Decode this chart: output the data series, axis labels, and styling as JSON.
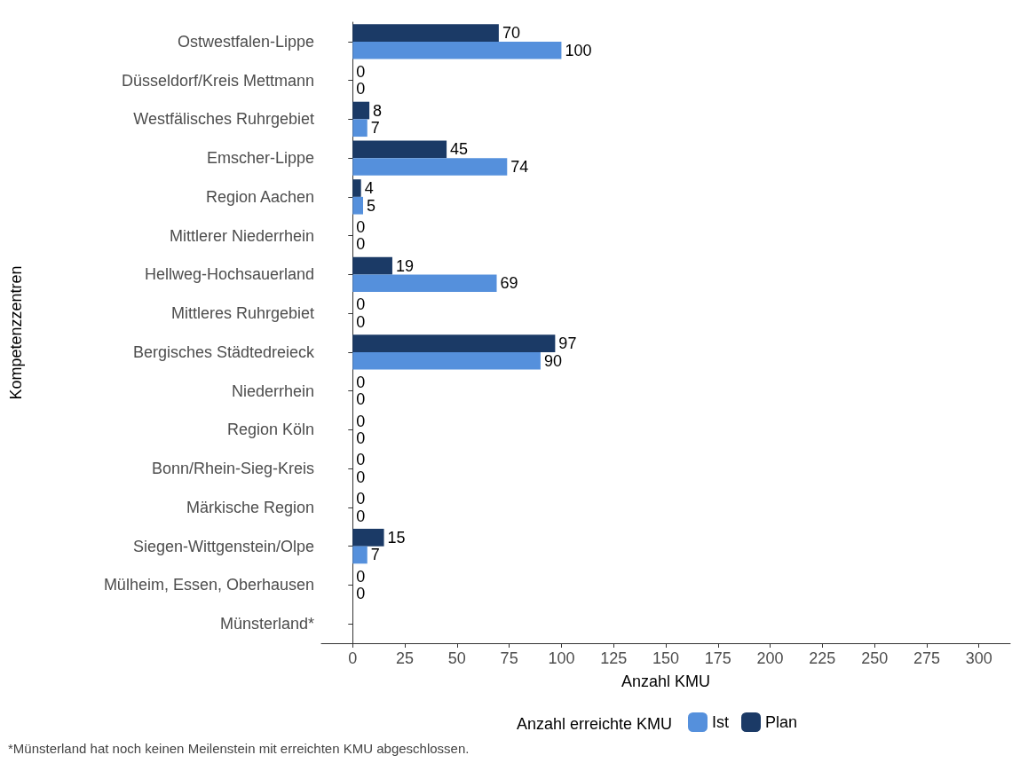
{
  "chart_data": {
    "type": "bar",
    "orientation": "horizontal",
    "xlabel": "Anzahl KMU",
    "ylabel": "Kompetenzzentren",
    "legend_title": "Anzahl erreichte KMU",
    "categories": [
      "Ostwestfalen-Lippe",
      "Düsseldorf/Kreis Mettmann",
      "Westfälisches Ruhrgebiet",
      "Emscher-Lippe",
      "Region Aachen",
      "Mittlerer Niederrhein",
      "Hellweg-Hochsauerland",
      "Mittleres Ruhrgebiet",
      "Bergisches Städtedreieck",
      "Niederrhein",
      "Region Köln",
      "Bonn/Rhein-Sieg-Kreis",
      "Märkische Region",
      "Siegen-Wittgenstein/Olpe",
      "Mülheim, Essen, Oberhausen",
      "Münsterland*"
    ],
    "series": [
      {
        "name": "Plan",
        "color": "#1b3a66",
        "values": [
          70,
          0,
          8,
          45,
          4,
          0,
          19,
          0,
          97,
          0,
          0,
          0,
          0,
          15,
          0,
          null
        ]
      },
      {
        "name": "Ist",
        "color": "#5590dc",
        "values": [
          100,
          0,
          7,
          74,
          5,
          0,
          69,
          0,
          90,
          0,
          0,
          0,
          0,
          7,
          0,
          null
        ]
      }
    ],
    "xlim": [
      -15,
      315
    ],
    "xticks": [
      0,
      25,
      50,
      75,
      100,
      125,
      150,
      175,
      200,
      225,
      250,
      275,
      300
    ],
    "data_labels": true,
    "grid": false,
    "legend": "bottom",
    "annotations": [
      "*Münsterland hat noch keinen Meilenstein mit erreichten KMU abgeschlossen."
    ]
  }
}
